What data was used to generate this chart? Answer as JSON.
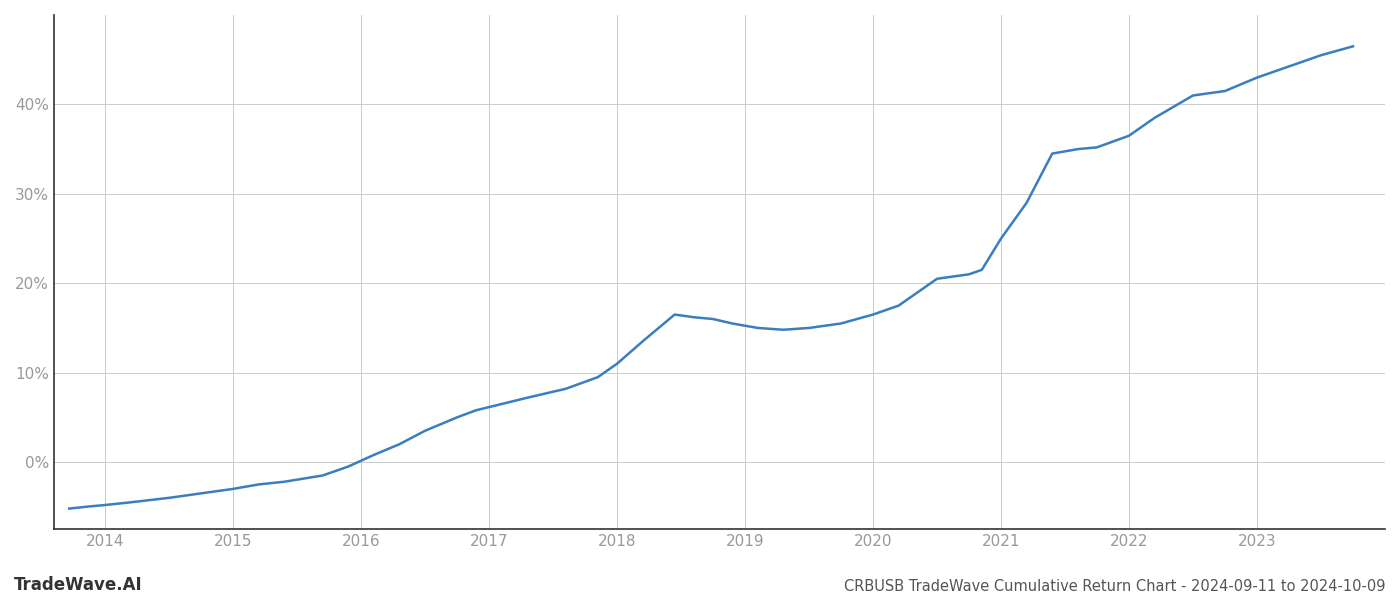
{
  "title": "CRBUSB TradeWave Cumulative Return Chart - 2024-09-11 to 2024-10-09",
  "watermark": "TradeWave.AI",
  "line_color": "#3a7ebf",
  "background_color": "#ffffff",
  "grid_color": "#cccccc",
  "x_values": [
    2013.72,
    2013.85,
    2014.0,
    2014.2,
    2014.5,
    2014.75,
    2015.0,
    2015.2,
    2015.4,
    2015.7,
    2015.9,
    2016.1,
    2016.3,
    2016.5,
    2016.75,
    2016.9,
    2017.1,
    2017.3,
    2017.6,
    2017.85,
    2018.0,
    2018.2,
    2018.45,
    2018.6,
    2018.75,
    2018.9,
    2019.1,
    2019.3,
    2019.5,
    2019.75,
    2020.0,
    2020.2,
    2020.5,
    2020.75,
    2020.85,
    2021.0,
    2021.2,
    2021.4,
    2021.6,
    2021.75,
    2022.0,
    2022.2,
    2022.5,
    2022.75,
    2023.0,
    2023.2,
    2023.5,
    2023.75
  ],
  "y_values": [
    -5.2,
    -5.0,
    -4.8,
    -4.5,
    -4.0,
    -3.5,
    -3.0,
    -2.5,
    -2.2,
    -1.5,
    -0.5,
    0.8,
    2.0,
    3.5,
    5.0,
    5.8,
    6.5,
    7.2,
    8.2,
    9.5,
    11.0,
    13.5,
    16.5,
    16.2,
    16.0,
    15.5,
    15.0,
    14.8,
    15.0,
    15.5,
    16.5,
    17.5,
    20.5,
    21.0,
    21.5,
    25.0,
    29.0,
    34.5,
    35.0,
    35.2,
    36.5,
    38.5,
    41.0,
    41.5,
    43.0,
    44.0,
    45.5,
    46.5
  ],
  "xlim": [
    2013.6,
    2024.0
  ],
  "ylim": [
    -7.5,
    50
  ],
  "yticks": [
    0,
    10,
    20,
    30,
    40
  ],
  "ytick_labels": [
    "0%",
    "10%",
    "20%",
    "30%",
    "40%"
  ],
  "xticks": [
    2014,
    2015,
    2016,
    2017,
    2018,
    2019,
    2020,
    2021,
    2022,
    2023
  ],
  "xtick_labels": [
    "2014",
    "2015",
    "2016",
    "2017",
    "2018",
    "2019",
    "2020",
    "2021",
    "2022",
    "2023"
  ],
  "tick_color": "#999999",
  "spine_color": "#333333",
  "axis_color": "#aaaaaa",
  "label_fontsize": 11,
  "title_fontsize": 10.5,
  "watermark_fontsize": 12,
  "line_width": 1.8
}
